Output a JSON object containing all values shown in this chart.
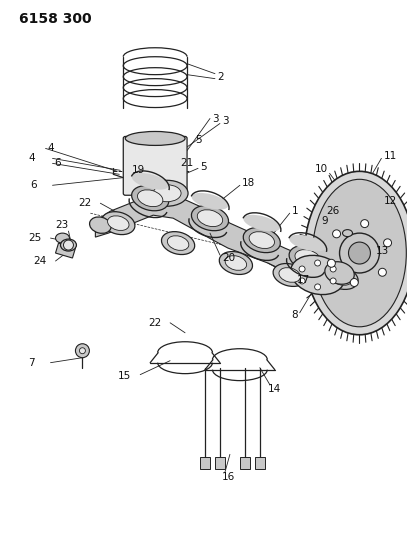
{
  "title": "6158 300",
  "bg_color": "#ffffff",
  "lc": "#222222",
  "label_color": "#111111",
  "title_fontsize": 10,
  "label_fontsize": 7.5,
  "figsize": [
    4.08,
    5.33
  ],
  "dpi": 100,
  "gray_fill": "#c8c8c8",
  "light_fill": "#e8e8e8",
  "dark_fill": "#aaaaaa"
}
